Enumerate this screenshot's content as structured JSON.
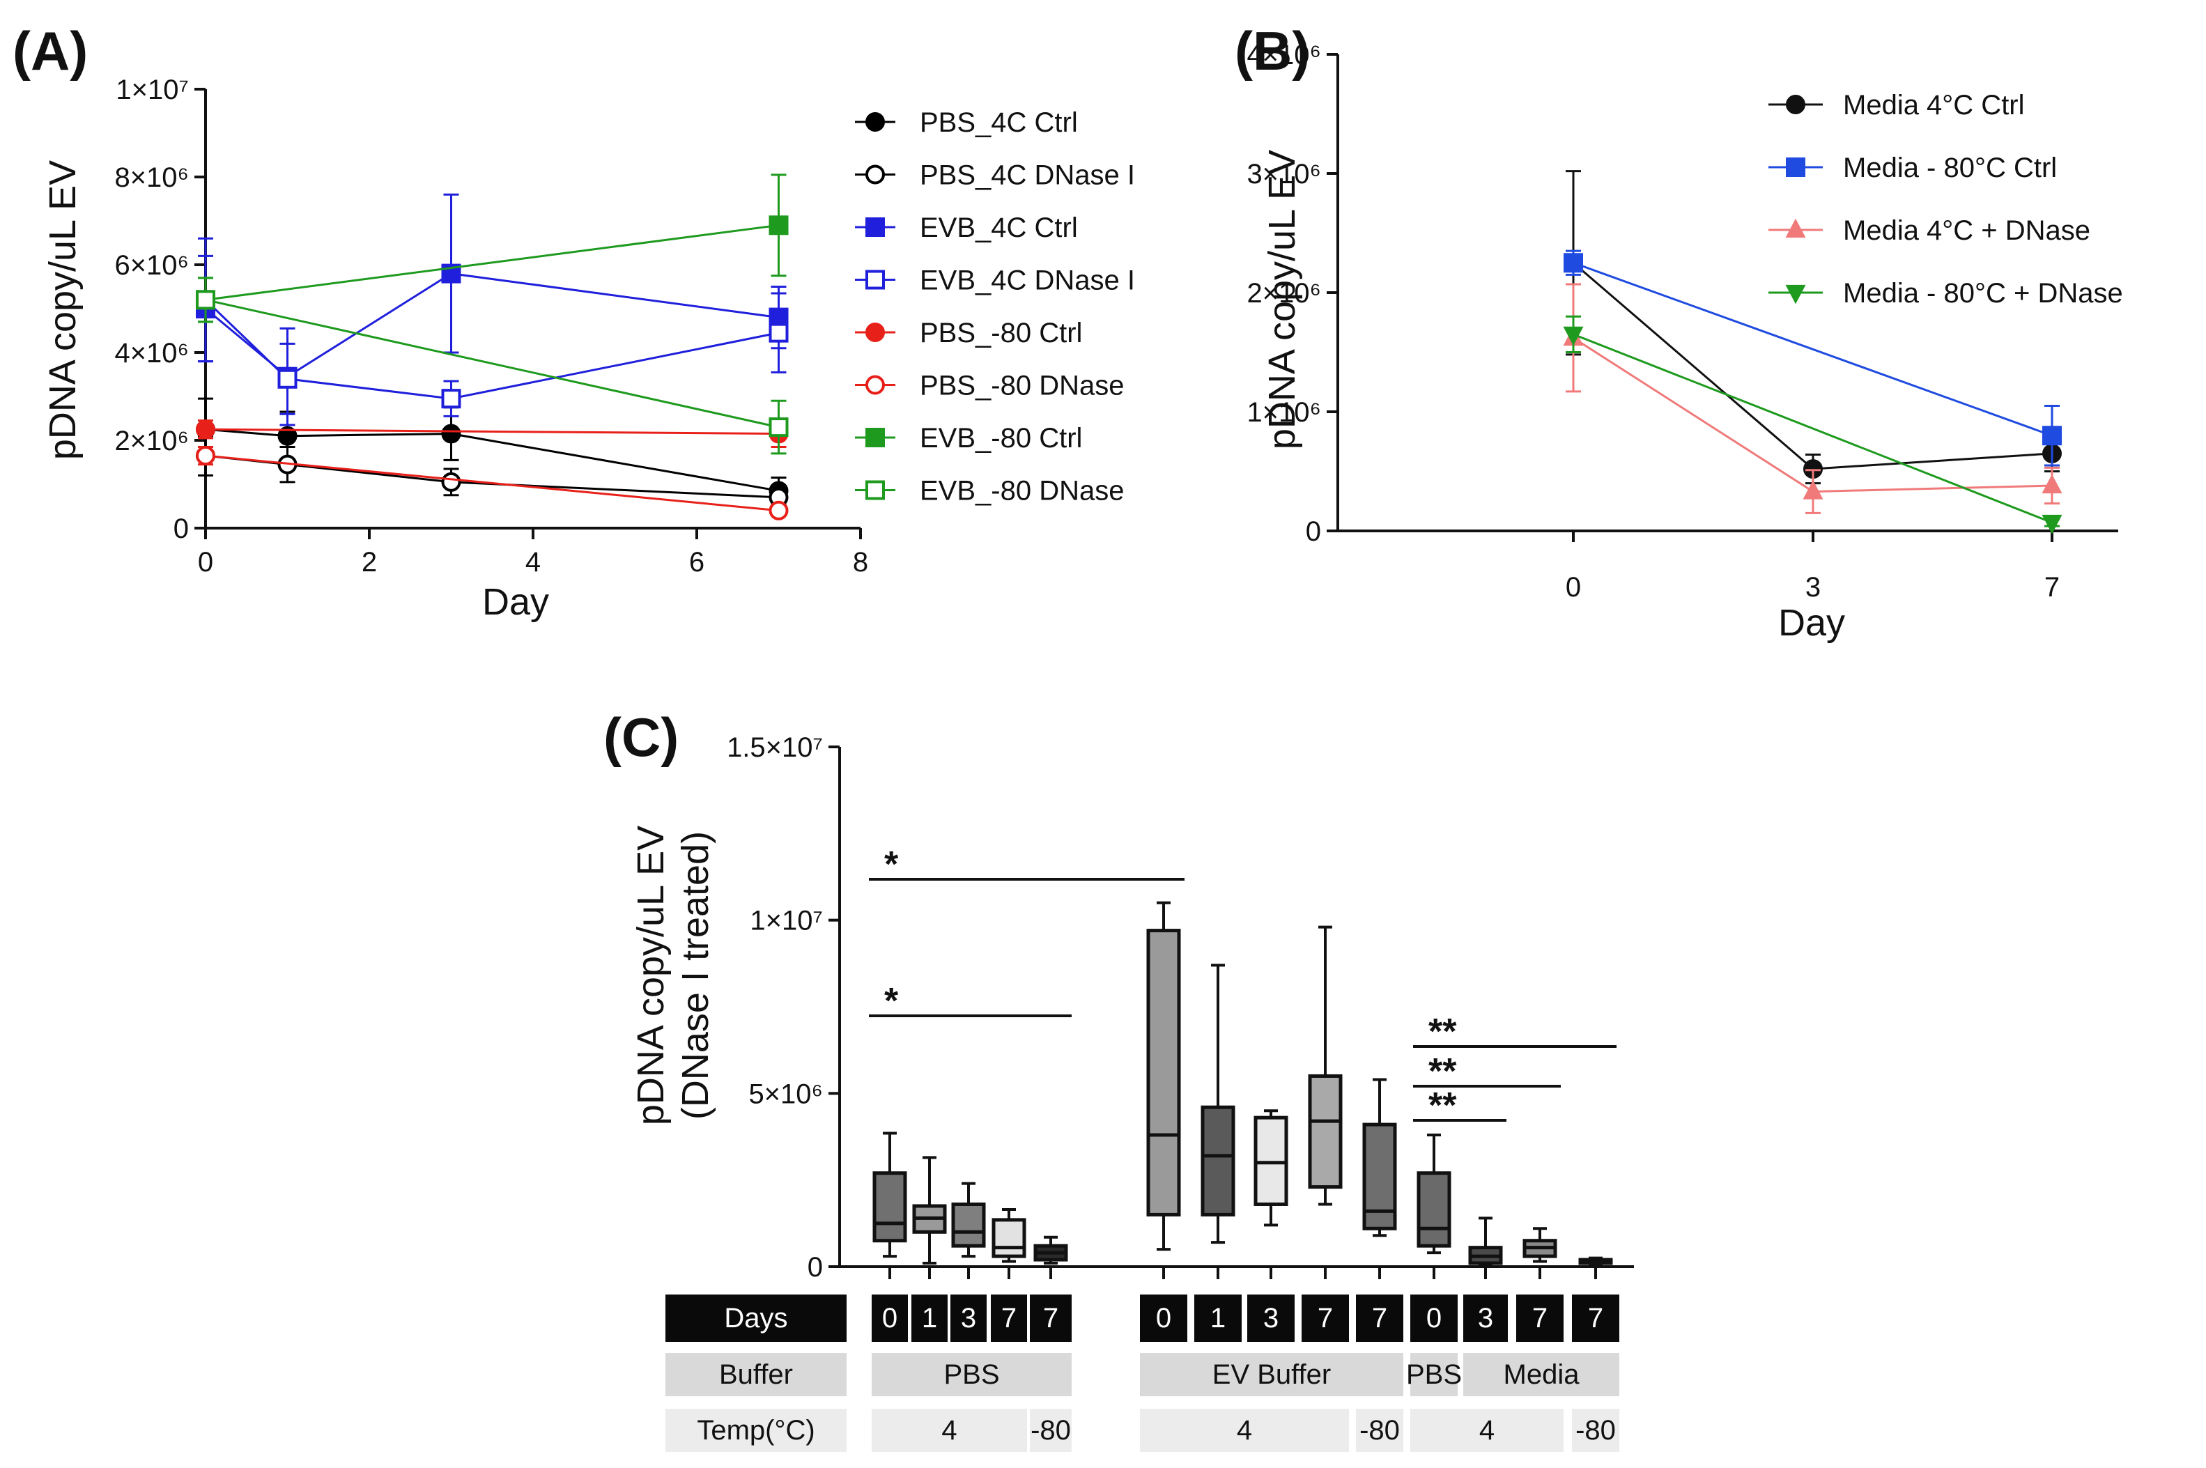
{
  "chart_data": [
    {
      "panel": "(A)",
      "type": "line",
      "xlabel": "Day",
      "ylabel": "pDNA copy/uL EV",
      "xlim": [
        0,
        8
      ],
      "ylim": [
        0,
        10000000
      ],
      "x_ticks": [
        0,
        2,
        4,
        6,
        8
      ],
      "x_tick_labels": [
        "0",
        "2",
        "4",
        "6",
        "8"
      ],
      "y_ticks": [
        0,
        2000000,
        4000000,
        6000000,
        8000000,
        10000000
      ],
      "y_tick_labels": [
        "0",
        "2×10⁶",
        "4×10⁶",
        "6×10⁶",
        "8×10⁶",
        "1×10⁷"
      ],
      "legend_position": "right",
      "series": [
        {
          "name": "PBS_4C Ctrl",
          "color": "#000000",
          "marker": "circle",
          "filled": true,
          "x": [
            0,
            1,
            3,
            7
          ],
          "values": [
            2250000,
            2100000,
            2150000,
            850000
          ],
          "err": [
            700000,
            550000,
            600000,
            300000
          ]
        },
        {
          "name": "PBS_4C DNase I",
          "color": "#000000",
          "marker": "circle",
          "filled": false,
          "x": [
            0,
            1,
            3,
            7
          ],
          "values": [
            1650000,
            1450000,
            1050000,
            700000
          ],
          "err": [
            450000,
            400000,
            300000,
            250000
          ]
        },
        {
          "name": "EVB_4C Ctrl",
          "color": "#1f1fdc",
          "marker": "square",
          "filled": true,
          "x": [
            0,
            1,
            3,
            7
          ],
          "values": [
            5000000,
            3450000,
            5800000,
            4800000
          ],
          "err": [
            1200000,
            1100000,
            1800000,
            700000
          ]
        },
        {
          "name": "EVB_4C DNase I",
          "color": "#1f1fdc",
          "marker": "square",
          "filled": false,
          "x": [
            0,
            1,
            3,
            7
          ],
          "values": [
            5200000,
            3400000,
            2950000,
            4450000
          ],
          "err": [
            1400000,
            800000,
            400000,
            900000
          ]
        },
        {
          "name": "PBS_-80 Ctrl",
          "color": "#e8201a",
          "marker": "circle",
          "filled": true,
          "x": [
            0,
            7
          ],
          "values": [
            2250000,
            2150000
          ],
          "err": [
            200000,
            300000
          ]
        },
        {
          "name": "PBS_-80 DNase",
          "color": "#e8201a",
          "marker": "circle",
          "filled": false,
          "x": [
            0,
            7
          ],
          "values": [
            1650000,
            400000
          ],
          "err": [
            200000,
            100000
          ]
        },
        {
          "name": "EVB_-80 Ctrl",
          "color": "#1e9a1e",
          "marker": "square",
          "filled": true,
          "x": [
            0,
            7
          ],
          "values": [
            5200000,
            6900000
          ],
          "err": [
            500000,
            1150000
          ]
        },
        {
          "name": "EVB_-80 DNase",
          "color": "#1e9a1e",
          "marker": "square",
          "filled": false,
          "x": [
            0,
            7
          ],
          "values": [
            5200000,
            2300000
          ],
          "err": [
            500000,
            600000
          ]
        }
      ]
    },
    {
      "panel": "(B)",
      "type": "line",
      "xlabel": "Day",
      "ylabel": "pDNA copy/uL EV",
      "ylim": [
        0,
        4000000
      ],
      "categories": [
        "0",
        "3",
        "7"
      ],
      "y_ticks": [
        0,
        1000000,
        2000000,
        3000000,
        4000000
      ],
      "y_tick_labels": [
        "0",
        "1×10⁶",
        "2×10⁶",
        "3×10⁶",
        "4×10⁶"
      ],
      "legend_position": "top-right",
      "series": [
        {
          "name": "Media 4°C Ctrl",
          "color": "#111111",
          "marker": "circle",
          "values": [
            2250000,
            520000,
            650000
          ],
          "err": [
            770000,
            120000,
            150000
          ]
        },
        {
          "name": "Media - 80°C Ctrl",
          "color": "#1f4be0",
          "marker": "square",
          "values": [
            2250000,
            null,
            800000
          ],
          "err": [
            100000,
            null,
            250000
          ]
        },
        {
          "name": "Media 4°C + DNase",
          "color": "#f07a7a",
          "marker": "triangle-up",
          "values": [
            1620000,
            330000,
            380000
          ],
          "err": [
            450000,
            180000,
            150000
          ]
        },
        {
          "name": "Media - 80°C + DNase",
          "color": "#1e9a1e",
          "marker": "triangle-down",
          "values": [
            1650000,
            null,
            70000
          ],
          "err": [
            150000,
            null,
            30000
          ]
        }
      ]
    },
    {
      "panel": "(C)",
      "type": "box",
      "ylabel_line1": "pDNA copy/uL EV",
      "ylabel_line2": "(DNase I treated)",
      "ylim": [
        0,
        15000000
      ],
      "y_ticks": [
        0,
        5000000,
        10000000,
        15000000
      ],
      "y_tick_labels": [
        "0",
        "5×10⁶",
        "1×10⁷",
        "1.5×10⁷"
      ],
      "boxes": [
        {
          "day": "0",
          "buffer": "PBS",
          "temp": "4",
          "min": 300000,
          "q1": 750000,
          "median": 1250000,
          "q3": 2700000,
          "max": 3850000,
          "fill": "#707070"
        },
        {
          "day": "1",
          "buffer": "PBS",
          "temp": "4",
          "min": 100000,
          "q1": 1000000,
          "median": 1400000,
          "q3": 1750000,
          "max": 3150000,
          "fill": "#9a9a9a"
        },
        {
          "day": "3",
          "buffer": "PBS",
          "temp": "4",
          "min": 300000,
          "q1": 600000,
          "median": 1000000,
          "q3": 1800000,
          "max": 2400000,
          "fill": "#7f7f7f"
        },
        {
          "day": "7",
          "buffer": "PBS",
          "temp": "4",
          "min": 150000,
          "q1": 300000,
          "median": 550000,
          "q3": 1350000,
          "max": 1650000,
          "fill": "#e2e2e2"
        },
        {
          "day": "7",
          "buffer": "PBS",
          "temp": "-80",
          "min": 100000,
          "q1": 200000,
          "median": 400000,
          "q3": 600000,
          "max": 850000,
          "fill": "#2a2a2a"
        },
        {
          "day": "0",
          "buffer": "EV Buffer",
          "temp": "4",
          "min": 500000,
          "q1": 1500000,
          "median": 3800000,
          "q3": 9700000,
          "max": 10500000,
          "fill": "#9a9a9a"
        },
        {
          "day": "1",
          "buffer": "EV Buffer",
          "temp": "4",
          "min": 700000,
          "q1": 1500000,
          "median": 3200000,
          "q3": 4600000,
          "max": 8700000,
          "fill": "#5a5a5a"
        },
        {
          "day": "3",
          "buffer": "EV Buffer",
          "temp": "4",
          "min": 1200000,
          "q1": 1800000,
          "median": 3000000,
          "q3": 4300000,
          "max": 4500000,
          "fill": "#e8e8e8"
        },
        {
          "day": "7",
          "buffer": "EV Buffer",
          "temp": "4",
          "min": 1800000,
          "q1": 2300000,
          "median": 4200000,
          "q3": 5500000,
          "max": 9800000,
          "fill": "#a9a9a9"
        },
        {
          "day": "7",
          "buffer": "EV Buffer",
          "temp": "-80",
          "min": 900000,
          "q1": 1100000,
          "median": 1600000,
          "q3": 4100000,
          "max": 5400000,
          "fill": "#6e6e6e"
        },
        {
          "day": "0",
          "buffer": "PBS",
          "temp": "4",
          "min": 400000,
          "q1": 600000,
          "median": 1100000,
          "q3": 2700000,
          "max": 3800000,
          "fill": "#6a6a6a"
        },
        {
          "day": "3",
          "buffer": "Media",
          "temp": "4",
          "min": 50000,
          "q1": 100000,
          "median": 300000,
          "q3": 550000,
          "max": 1400000,
          "fill": "#4a4a4a"
        },
        {
          "day": "7",
          "buffer": "Media",
          "temp": "4",
          "min": 150000,
          "q1": 300000,
          "median": 550000,
          "q3": 750000,
          "max": 1100000,
          "fill": "#8a8a8a"
        },
        {
          "day": "7",
          "buffer": "Media",
          "temp": "-80",
          "min": 50000,
          "q1": 100000,
          "median": 150000,
          "q3": 200000,
          "max": 250000,
          "fill": "#3a3a3a"
        }
      ],
      "significance": [
        {
          "from_box": 0,
          "to_box": 5,
          "label": "*"
        },
        {
          "from_box": 0,
          "to_box": 4,
          "label": "*"
        },
        {
          "from_box": 10,
          "to_box": 13,
          "label": "**"
        },
        {
          "from_box": 10,
          "to_box": 12,
          "label": "**"
        },
        {
          "from_box": 10,
          "to_box": 11,
          "label": "**"
        }
      ],
      "table": {
        "row_days_label": "Days",
        "row_buffer_label": "Buffer",
        "row_temp_label": "Temp(°C)",
        "days": [
          "0",
          "1",
          "3",
          "7",
          "7",
          "0",
          "1",
          "3",
          "7",
          "7",
          "0",
          "3",
          "7",
          "7"
        ],
        "buffer_groups": [
          {
            "label": "PBS",
            "span": 5
          },
          {
            "label": "EV Buffer",
            "span": 5
          },
          {
            "label": "PBS",
            "span": 1
          },
          {
            "label": "Media",
            "span": 3
          }
        ],
        "temp_groups": [
          {
            "label": "4",
            "span": 4
          },
          {
            "label": "-80",
            "span": 1
          },
          {
            "label": "4",
            "span": 4
          },
          {
            "label": "-80",
            "span": 1
          },
          {
            "label": "4",
            "span": 3
          },
          {
            "label": "-80",
            "span": 1
          }
        ]
      }
    }
  ]
}
